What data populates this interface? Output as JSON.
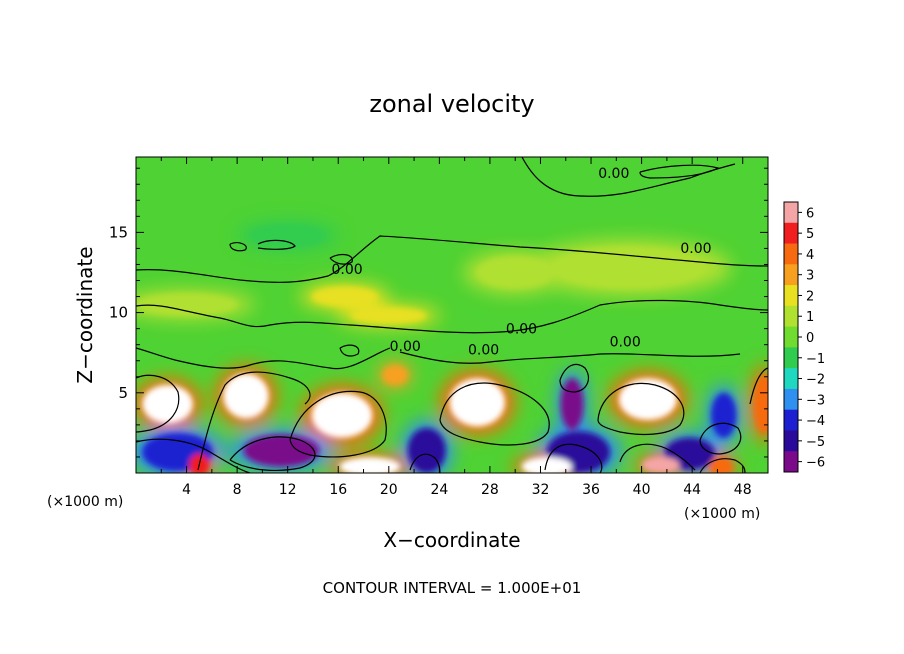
{
  "chart_data": {
    "type": "heatmap",
    "title": "zonal velocity",
    "xlabel": "X−coordinate",
    "ylabel": "Z−coordinate",
    "x_unit_left": "(×1000 m)",
    "x_unit_right": "(×1000 m)",
    "footer": "CONTOUR INTERVAL = 1.000E+01",
    "xlim": [
      0,
      50
    ],
    "ylim": [
      0,
      19.7
    ],
    "x_ticks": [
      4,
      8,
      12,
      16,
      20,
      24,
      28,
      32,
      36,
      40,
      44,
      48
    ],
    "y_ticks": [
      5,
      10,
      15
    ],
    "colorbar": {
      "ticks": [
        6,
        5,
        4,
        3,
        2,
        1,
        0,
        -1,
        -2,
        -3,
        -4,
        -5,
        -6
      ],
      "tick_labels": [
        "6",
        "5",
        "4",
        "3",
        "2",
        "1",
        "0",
        "−1",
        "−2",
        "−3",
        "−4",
        "−5",
        "−6"
      ],
      "colors": [
        "#f4a6a6",
        "#f01e1e",
        "#f76a10",
        "#f7a020",
        "#e8e020",
        "#b0e030",
        "#70dc30",
        "#30cc50",
        "#20d8c0",
        "#3090f0",
        "#1c20d0",
        "#2a0a9a",
        "#7a0a8a"
      ]
    },
    "contour_labels": [
      {
        "text": "0.00",
        "x": 37.8,
        "y": 18.4
      },
      {
        "text": "0.00",
        "x": 44.3,
        "y": 13.7
      },
      {
        "text": "0.00",
        "x": 16.7,
        "y": 12.4
      },
      {
        "text": "0.00",
        "x": 30.5,
        "y": 8.7
      },
      {
        "text": "0.00",
        "x": 21.3,
        "y": 7.6
      },
      {
        "text": "0.00",
        "x": 27.5,
        "y": 7.4
      },
      {
        "text": "0.00",
        "x": 38.7,
        "y": 7.9
      }
    ],
    "features": [
      {
        "x": 2.5,
        "z": 4.3,
        "rx": 2.0,
        "rz": 1.2,
        "v": 7
      },
      {
        "x": 8.7,
        "z": 4.8,
        "rx": 1.8,
        "rz": 1.4,
        "v": 7
      },
      {
        "x": 16.3,
        "z": 3.6,
        "rx": 2.4,
        "rz": 1.4,
        "v": 7
      },
      {
        "x": 27.0,
        "z": 4.4,
        "rx": 2.2,
        "rz": 1.5,
        "v": 7
      },
      {
        "x": 40.5,
        "z": 4.6,
        "rx": 2.3,
        "rz": 1.3,
        "v": 7
      },
      {
        "x": 11.5,
        "z": 1.4,
        "rx": 3.0,
        "rz": 1.0,
        "v": -6
      },
      {
        "x": 3.3,
        "z": 1.3,
        "rx": 2.8,
        "rz": 1.2,
        "v": -4
      },
      {
        "x": 23.0,
        "z": 1.4,
        "rx": 1.5,
        "rz": 1.4,
        "v": -5
      },
      {
        "x": 34.5,
        "z": 4.3,
        "rx": 0.9,
        "rz": 1.6,
        "v": -6
      },
      {
        "x": 35.0,
        "z": 1.3,
        "rx": 2.5,
        "rz": 1.3,
        "v": -5
      },
      {
        "x": 43.8,
        "z": 1.2,
        "rx": 2.0,
        "rz": 1.0,
        "v": -5
      },
      {
        "x": 46.5,
        "z": 3.6,
        "rx": 1.0,
        "rz": 1.4,
        "v": -4
      },
      {
        "x": 18.5,
        "z": 0.4,
        "rx": 2.4,
        "rz": 0.6,
        "v": 7
      },
      {
        "x": 32.5,
        "z": 0.4,
        "rx": 2.0,
        "rz": 0.6,
        "v": 7
      },
      {
        "x": 41.5,
        "z": 0.5,
        "rx": 1.5,
        "rz": 0.5,
        "v": 6
      },
      {
        "x": 5.0,
        "z": 0.5,
        "rx": 0.8,
        "rz": 0.7,
        "v": 5
      },
      {
        "x": 46.3,
        "z": 0.4,
        "rx": 0.9,
        "rz": 0.6,
        "v": 4
      },
      {
        "x": 49.7,
        "z": 4.3,
        "rx": 0.8,
        "rz": 1.8,
        "v": 4
      },
      {
        "x": 16.5,
        "z": 11.0,
        "rx": 2.6,
        "rz": 0.6,
        "v": 2.5
      },
      {
        "x": 20.5,
        "z": 6.1,
        "rx": 1.0,
        "rz": 0.6,
        "v": 3
      },
      {
        "x": 20.0,
        "z": 9.8,
        "rx": 3.0,
        "rz": 0.5,
        "v": 1.6
      },
      {
        "x": 39.0,
        "z": 12.8,
        "rx": 6.0,
        "rz": 1.3,
        "v": 1.4
      },
      {
        "x": 12.0,
        "z": 14.8,
        "rx": 3.0,
        "rz": 0.7,
        "v": -1.2
      },
      {
        "x": 4.0,
        "z": 10.5,
        "rx": 4.0,
        "rz": 0.7,
        "v": 1.5
      },
      {
        "x": 30.0,
        "z": 12.5,
        "rx": 3.0,
        "rz": 1.0,
        "v": 1.2
      }
    ]
  }
}
